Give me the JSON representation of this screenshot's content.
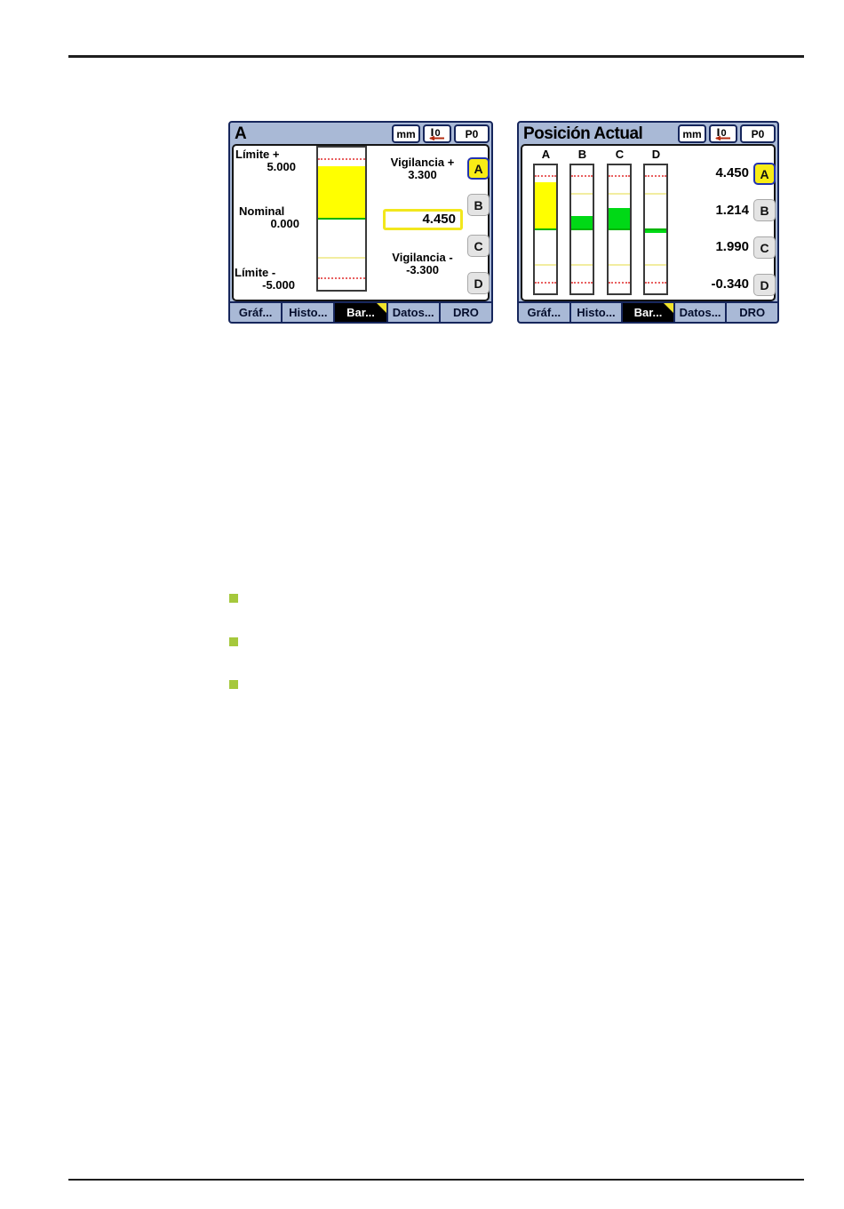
{
  "page": {
    "bullets": {
      "count": 3,
      "color": "#a5c83c"
    }
  },
  "colors": {
    "chrome_blue": "#a9b9d6",
    "frame_navy": "#16265c",
    "warning_yellow": "#ffff00",
    "ok_green": "#00d916",
    "nominal_green": "#00b400",
    "limit_red": "#e86060",
    "warn_line_yellow": "#f2eda0",
    "selected_axis_bg": "#f8ec16",
    "selected_axis_border": "#2233b0",
    "selected_tab_marker": "#f0e32c",
    "bullet_green": "#a5c83c"
  },
  "chart_data": [
    {
      "type": "bar",
      "title": "A",
      "orientation": "vertical",
      "categories": [
        "A"
      ],
      "values": [
        4.45
      ],
      "nominal": 0.0,
      "limit_plus": 5.0,
      "limit_minus": -5.0,
      "warn_plus": 3.3,
      "warn_minus": -3.3,
      "unit": "mm",
      "ylim": [
        -6,
        6
      ],
      "grid": false,
      "legend": "none"
    },
    {
      "type": "bar",
      "title": "Posición Actual",
      "orientation": "vertical",
      "categories": [
        "A",
        "B",
        "C",
        "D"
      ],
      "values": [
        4.45,
        1.214,
        1.99,
        -0.34
      ],
      "nominal": 0.0,
      "limit_plus": 5.0,
      "limit_minus": -5.0,
      "warn_plus": 3.3,
      "warn_minus": -3.3,
      "unit": "mm",
      "ylim": [
        -6,
        6
      ],
      "grid": false,
      "legend": "none"
    }
  ],
  "screens": [
    {
      "title": "A",
      "toolbar": {
        "units": "mm",
        "datum": "0",
        "preset": "P0"
      },
      "panel": {
        "limit_plus": {
          "label": "Límite +",
          "value": "5.000"
        },
        "nominal": {
          "label": "Nominal",
          "value": "0.000"
        },
        "limit_minus": {
          "label": "Límite -",
          "value": "-5.000"
        },
        "warn_plus": {
          "label": "Vigilancia +",
          "value": "3.300"
        },
        "warn_minus": {
          "label": "Vigilancia -",
          "value": "-3.300"
        },
        "current": {
          "value": "4.450"
        }
      },
      "axis_buttons": [
        {
          "label": "A",
          "selected": true
        },
        {
          "label": "B",
          "selected": false
        },
        {
          "label": "C",
          "selected": false
        },
        {
          "label": "D",
          "selected": false
        }
      ],
      "tabs": [
        {
          "label": "Gráf...",
          "selected": false
        },
        {
          "label": "Histo...",
          "selected": false
        },
        {
          "label": "Bar...",
          "selected": true
        },
        {
          "label": "Datos...",
          "selected": false
        },
        {
          "label": "DRO",
          "selected": false
        }
      ]
    },
    {
      "title": "Posición Actual",
      "toolbar": {
        "units": "mm",
        "datum": "0",
        "preset": "P0"
      },
      "columns": [
        "A",
        "B",
        "C",
        "D"
      ],
      "readouts": [
        {
          "value": "4.450",
          "axis": "A",
          "selected": true
        },
        {
          "value": "1.214",
          "axis": "B",
          "selected": false
        },
        {
          "value": "1.990",
          "axis": "C",
          "selected": false
        },
        {
          "value": "-0.340",
          "axis": "D",
          "selected": false
        }
      ],
      "tabs": [
        {
          "label": "Gráf...",
          "selected": false
        },
        {
          "label": "Histo...",
          "selected": false
        },
        {
          "label": "Bar...",
          "selected": true
        },
        {
          "label": "Datos...",
          "selected": false
        },
        {
          "label": "DRO",
          "selected": false
        }
      ]
    }
  ]
}
